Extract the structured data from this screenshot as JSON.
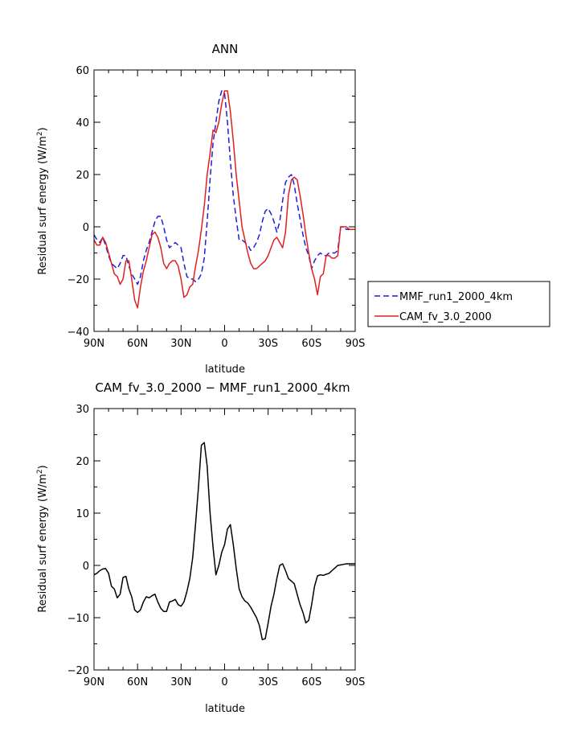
{
  "chart_data": [
    {
      "type": "line",
      "title": "ANN",
      "xlabel": "latitude",
      "ylabel": "Residual surf energy (W/m²)",
      "ylabel_main": "Residual surf energy (W/m",
      "ylabel_sup": "2",
      "ylabel_end": ")",
      "ylim": [
        -40,
        60
      ],
      "yticks": [
        -40,
        -20,
        0,
        20,
        40,
        60
      ],
      "ytick_labels": [
        "−40",
        "−20",
        "0",
        "20",
        "40",
        "60"
      ],
      "xlim": [
        90,
        -90
      ],
      "xticks": [
        90,
        60,
        30,
        0,
        -30,
        -60,
        -90
      ],
      "xtick_labels": [
        "90N",
        "60N",
        "30N",
        "0",
        "30S",
        "60S",
        "90S"
      ],
      "series": [
        {
          "name": "MMF_run1_2000_4km",
          "color": "#1f1fd6",
          "dash": "dashed",
          "x": [
            90,
            88,
            86,
            84,
            82,
            80,
            78,
            76,
            74,
            72,
            70,
            68,
            66,
            64,
            62,
            60,
            58,
            56,
            54,
            52,
            50,
            48,
            46,
            44,
            42,
            40,
            38,
            36,
            34,
            32,
            30,
            28,
            26,
            24,
            22,
            20,
            18,
            16,
            14,
            12,
            10,
            8,
            6,
            4,
            2,
            0,
            -2,
            -4,
            -6,
            -8,
            -10,
            -12,
            -14,
            -16,
            -18,
            -20,
            -22,
            -24,
            -26,
            -28,
            -30,
            -32,
            -34,
            -36,
            -38,
            -40,
            -42,
            -44,
            -46,
            -48,
            -50,
            -52,
            -54,
            -56,
            -58,
            -60,
            -62,
            -64,
            -66,
            -68,
            -70,
            -72,
            -74,
            -76,
            -78,
            -80,
            -82,
            -84,
            -86,
            -88,
            -90
          ],
          "values": [
            -3,
            -5,
            -6,
            -4,
            -7,
            -11,
            -14,
            -15,
            -16,
            -14,
            -11,
            -11,
            -15,
            -18,
            -20,
            -22,
            -19,
            -13,
            -9,
            -6,
            -2,
            2,
            4,
            4,
            0,
            -5,
            -8,
            -7,
            -6,
            -7,
            -8,
            -14,
            -19,
            -20,
            -20,
            -21,
            -20,
            -18,
            -12,
            2,
            18,
            32,
            40,
            48,
            52,
            51,
            40,
            25,
            12,
            3,
            -5,
            -5,
            -6,
            -7,
            -9,
            -8,
            -6,
            -3,
            2,
            6,
            7,
            5,
            2,
            -2,
            2,
            10,
            17,
            19,
            20,
            16,
            9,
            3,
            -3,
            -8,
            -11,
            -16,
            -13,
            -11,
            -10,
            -11,
            -11,
            -10,
            -10,
            -10,
            -9,
            0,
            0,
            -1,
            -1,
            -1,
            -1
          ]
        },
        {
          "name": "CAM_fv_3.0_2000",
          "color": "#e02020",
          "dash": "solid",
          "x": [
            90,
            88,
            86,
            84,
            82,
            80,
            78,
            76,
            74,
            72,
            70,
            68,
            66,
            64,
            62,
            60,
            58,
            56,
            54,
            52,
            50,
            48,
            46,
            44,
            42,
            40,
            38,
            36,
            34,
            32,
            30,
            28,
            26,
            24,
            22,
            20,
            18,
            16,
            14,
            12,
            10,
            8,
            6,
            4,
            2,
            0,
            -2,
            -4,
            -6,
            -8,
            -10,
            -12,
            -14,
            -16,
            -18,
            -20,
            -22,
            -24,
            -26,
            -28,
            -30,
            -32,
            -34,
            -36,
            -38,
            -40,
            -42,
            -44,
            -46,
            -48,
            -50,
            -52,
            -54,
            -56,
            -58,
            -60,
            -62,
            -64,
            -66,
            -68,
            -70,
            -72,
            -74,
            -76,
            -78,
            -80,
            -82,
            -84,
            -86,
            -88,
            -90
          ],
          "values": [
            -5,
            -7,
            -7,
            -4,
            -6,
            -10,
            -14,
            -18,
            -19,
            -22,
            -20,
            -13,
            -13,
            -20,
            -28,
            -31,
            -23,
            -17,
            -13,
            -8,
            -3,
            -2,
            -4,
            -8,
            -14,
            -16,
            -14,
            -13,
            -13,
            -15,
            -20,
            -27,
            -26,
            -23,
            -22,
            -15,
            -9,
            -1,
            8,
            20,
            28,
            37,
            36,
            40,
            47,
            52,
            52,
            44,
            33,
            20,
            10,
            0,
            -5,
            -10,
            -14,
            -16,
            -16,
            -15,
            -14,
            -13,
            -11,
            -8,
            -5,
            -4,
            -6,
            -8,
            -2,
            12,
            18,
            19,
            18,
            12,
            5,
            -3,
            -10,
            -16,
            -20,
            -26,
            -19,
            -18,
            -11,
            -11,
            -12,
            -12,
            -11,
            0,
            0,
            0,
            -1,
            -1,
            -1
          ]
        }
      ],
      "legend": {
        "position": "right",
        "entries": [
          "MMF_run1_2000_4km",
          "CAM_fv_3.0_2000"
        ]
      }
    },
    {
      "type": "line",
      "title": "CAM_fv_3.0_2000 − MMF_run1_2000_4km",
      "xlabel": "latitude",
      "ylabel": "Residual surf energy (W/m²)",
      "ylabel_main": "Residual surf energy (W/m",
      "ylabel_sup": "2",
      "ylabel_end": ")",
      "ylim": [
        -20,
        30
      ],
      "yticks": [
        -20,
        -10,
        0,
        10,
        20,
        30
      ],
      "ytick_labels": [
        "−20",
        "−10",
        "0",
        "10",
        "20",
        "30"
      ],
      "xlim": [
        90,
        -90
      ],
      "xticks": [
        90,
        60,
        30,
        0,
        -30,
        -60,
        -90
      ],
      "xtick_labels": [
        "90N",
        "60N",
        "30N",
        "0",
        "30S",
        "60S",
        "90S"
      ],
      "series": [
        {
          "name": "CAM_fv_3.0_2000 − MMF_run1_2000_4km",
          "color": "#000000",
          "dash": "solid",
          "x": [
            90,
            88,
            86,
            84,
            82,
            80,
            78,
            76,
            74,
            72,
            70,
            68,
            66,
            64,
            62,
            60,
            58,
            56,
            54,
            52,
            50,
            48,
            46,
            44,
            42,
            40,
            38,
            36,
            34,
            32,
            30,
            28,
            26,
            24,
            22,
            20,
            18,
            16,
            14,
            12,
            10,
            8,
            6,
            4,
            2,
            0,
            -2,
            -4,
            -6,
            -8,
            -10,
            -12,
            -14,
            -16,
            -18,
            -20,
            -22,
            -24,
            -26,
            -28,
            -30,
            -32,
            -34,
            -36,
            -38,
            -40,
            -42,
            -44,
            -46,
            -48,
            -50,
            -52,
            -54,
            -56,
            -58,
            -60,
            -62,
            -64,
            -66,
            -68,
            -70,
            -72,
            -74,
            -76,
            -78,
            -80,
            -82,
            -84,
            -86,
            -88,
            -90
          ],
          "values": [
            -1.8,
            -1.5,
            -1.0,
            -0.7,
            -0.6,
            -1.5,
            -4.0,
            -4.5,
            -6.2,
            -5.5,
            -2.3,
            -2.1,
            -4.5,
            -6.0,
            -8.5,
            -9.0,
            -8.5,
            -7.0,
            -6.0,
            -6.2,
            -5.8,
            -5.5,
            -7.0,
            -8.2,
            -8.8,
            -8.8,
            -7.0,
            -6.8,
            -6.5,
            -7.5,
            -7.8,
            -7.0,
            -5.0,
            -2.5,
            1.5,
            8.0,
            15.0,
            23.0,
            23.5,
            19.0,
            10.0,
            3.5,
            -1.8,
            0.0,
            2.5,
            4.0,
            7.0,
            7.8,
            4.0,
            -0.5,
            -4.5,
            -6.0,
            -6.8,
            -7.2,
            -8.0,
            -9.0,
            -10.0,
            -11.5,
            -14.2,
            -14.0,
            -11.0,
            -7.8,
            -5.5,
            -2.5,
            0.0,
            0.3,
            -1.0,
            -2.5,
            -3.0,
            -3.5,
            -5.5,
            -7.5,
            -9.0,
            -11.0,
            -10.5,
            -7.5,
            -4.0,
            -2.0,
            -1.8,
            -1.9,
            -1.7,
            -1.5,
            -1.0,
            -0.5,
            0.0,
            0.1,
            0.2,
            0.3,
            0.3,
            0.3,
            0.3
          ]
        }
      ]
    }
  ]
}
